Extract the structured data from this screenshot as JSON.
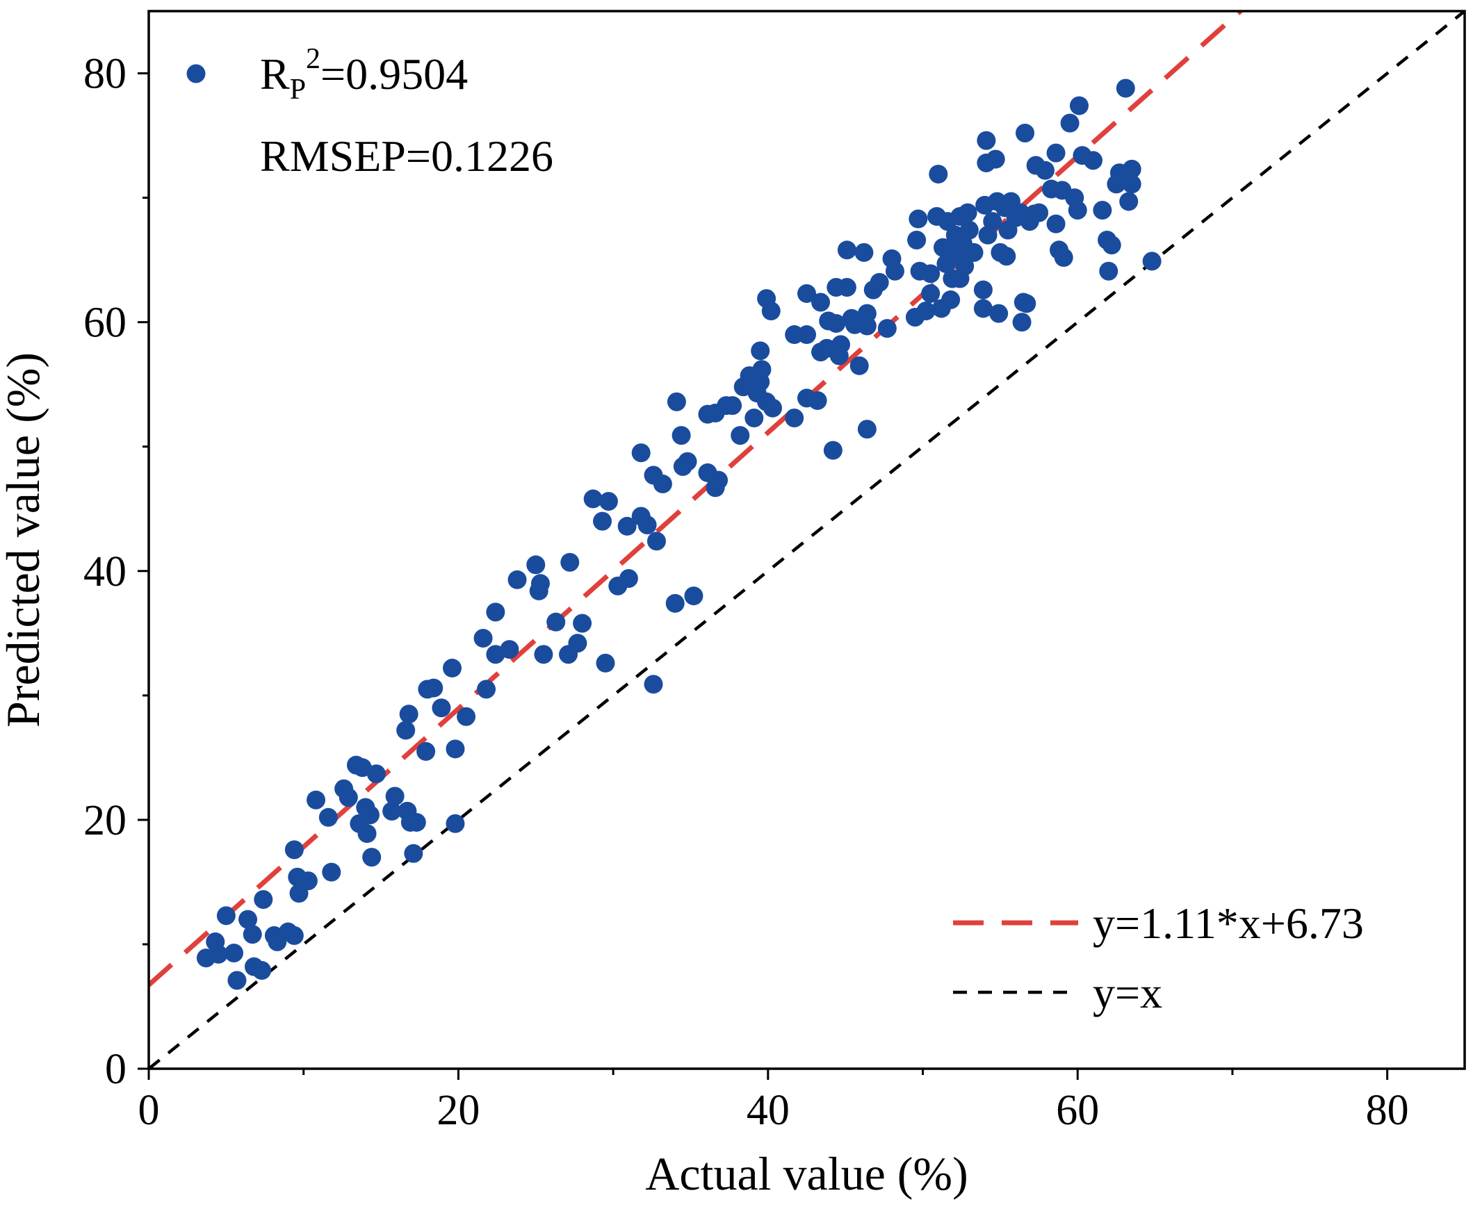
{
  "chart_data": {
    "type": "scatter",
    "xlabel": "Actual value (%)",
    "ylabel": "Predicted value (%)",
    "xlim": [
      0,
      85
    ],
    "ylim": [
      0,
      85
    ],
    "xticks": [
      0,
      20,
      40,
      60,
      80
    ],
    "yticks": [
      0,
      20,
      40,
      60,
      80
    ],
    "minor_xticks": [
      10,
      30,
      50,
      70
    ],
    "minor_yticks": [
      10,
      30,
      50,
      70
    ],
    "annotations": [
      {
        "base": "R",
        "sub": "P",
        "sup": "2",
        "text": "=0.9504"
      },
      {
        "text": "RMSEP=0.1226"
      }
    ],
    "series": [
      {
        "color": "#1a4c9e",
        "x": [
          3.7,
          4.3,
          5.0,
          4.5,
          5.5,
          5.7,
          6.4,
          6.7,
          6.8,
          7.3,
          7.4,
          8.1,
          8.3,
          9.0,
          9.4,
          9.4,
          9.6,
          9.7,
          10.3,
          10.8,
          11.6,
          11.8,
          12.6,
          12.9,
          13.4,
          13.6,
          13.8,
          14.0,
          14.1,
          14.3,
          14.4,
          14.7,
          15.7,
          15.9,
          16.7,
          16.9,
          17.1,
          17.3,
          16.6,
          16.8,
          17.9,
          18.0,
          18.4,
          18.9,
          19.6,
          19.8,
          19.8,
          20.5,
          21.8,
          21.6,
          22.4,
          22.4,
          23.3,
          23.8,
          25.0,
          25.2,
          25.3,
          25.5,
          26.3,
          27.2,
          27.1,
          27.7,
          28.0,
          28.7,
          29.3,
          29.7,
          29.5,
          30.3,
          31.0,
          30.9,
          31.8,
          31.8,
          32.2,
          32.6,
          32.8,
          32.6,
          33.2,
          34.1,
          34.0,
          34.4,
          34.5,
          34.8,
          35.2,
          36.1,
          36.6,
          36.8,
          36.1,
          36.6,
          37.3,
          37.7,
          38.2,
          38.4,
          38.8,
          39.1,
          39.3,
          39.5,
          39.6,
          39.5,
          39.9,
          40.2,
          39.9,
          40.3,
          41.7,
          41.7,
          42.5,
          42.5,
          42.5,
          43.2,
          43.4,
          43.4,
          43.8,
          43.9,
          44.4,
          44.4,
          44.6,
          44.2,
          44.7,
          45.1,
          45.1,
          45.4,
          45.6,
          45.9,
          46.2,
          46.4,
          46.4,
          46.4,
          46.8,
          47.2,
          47.7,
          48.0,
          48.2,
          49.5,
          49.6,
          49.7,
          49.8,
          50.2,
          50.5,
          50.5,
          51.0,
          50.9,
          51.2,
          51.3,
          51.5,
          51.6,
          51.8,
          51.8,
          51.9,
          52.1,
          52.3,
          52.4,
          52.4,
          52.6,
          52.7,
          53.0,
          52.9,
          53.3,
          53.9,
          53.9,
          54.1,
          54.1,
          54.0,
          54.2,
          54.5,
          54.7,
          54.8,
          54.9,
          55.0,
          55.3,
          55.4,
          55.5,
          55.7,
          56.0,
          56.3,
          56.5,
          56.4,
          56.6,
          56.7,
          56.9,
          57.2,
          57.5,
          57.3,
          57.9,
          58.3,
          58.6,
          58.6,
          58.8,
          59.1,
          59.0,
          59.5,
          60.0,
          60.1,
          60.3,
          59.8,
          61.0,
          61.6,
          61.9,
          62.0,
          62.2,
          62.5,
          62.7,
          63.1,
          63.3,
          63.5,
          63.5,
          64.8
        ],
        "values": [
          8.9,
          10.2,
          12.3,
          9.2,
          9.3,
          7.1,
          12.0,
          10.8,
          8.2,
          7.9,
          13.6,
          10.7,
          10.2,
          11.0,
          10.7,
          17.6,
          15.4,
          14.1,
          15.1,
          21.6,
          20.2,
          15.8,
          22.5,
          21.8,
          24.4,
          19.7,
          24.2,
          21.0,
          18.9,
          20.4,
          17.0,
          23.7,
          20.7,
          21.9,
          20.7,
          19.8,
          17.3,
          19.8,
          27.2,
          28.5,
          25.5,
          30.5,
          30.6,
          29.0,
          32.2,
          25.7,
          19.7,
          28.3,
          30.5,
          34.6,
          36.7,
          33.3,
          33.7,
          39.3,
          40.5,
          38.4,
          39.0,
          33.3,
          35.9,
          40.7,
          33.3,
          34.2,
          35.8,
          45.8,
          44.0,
          45.6,
          32.6,
          38.8,
          39.4,
          43.6,
          49.5,
          44.4,
          43.7,
          47.7,
          42.4,
          30.9,
          47.0,
          53.6,
          37.4,
          50.9,
          48.4,
          48.8,
          38.0,
          47.9,
          46.7,
          47.3,
          52.6,
          52.7,
          53.3,
          53.3,
          50.9,
          54.8,
          55.7,
          52.3,
          54.3,
          57.7,
          56.2,
          55.2,
          61.9,
          60.9,
          53.6,
          53.1,
          52.3,
          59.0,
          59.0,
          53.9,
          62.3,
          53.7,
          61.6,
          57.6,
          57.9,
          60.1,
          62.8,
          59.9,
          57.3,
          49.7,
          58.2,
          62.8,
          65.8,
          60.3,
          59.8,
          56.5,
          65.6,
          51.4,
          60.7,
          59.7,
          62.6,
          63.2,
          59.5,
          65.1,
          64.1,
          60.4,
          66.6,
          68.3,
          64.1,
          60.9,
          63.9,
          62.3,
          71.9,
          68.5,
          61.1,
          66.0,
          64.7,
          68.1,
          61.8,
          65.8,
          63.5,
          67.0,
          65.3,
          68.5,
          63.5,
          66.3,
          64.5,
          67.4,
          68.8,
          65.6,
          62.6,
          61.1,
          74.6,
          72.8,
          69.4,
          67.0,
          68.1,
          73.1,
          69.7,
          60.7,
          65.6,
          69.2,
          65.3,
          67.4,
          69.7,
          68.4,
          68.8,
          61.6,
          60.0,
          75.2,
          61.5,
          68.1,
          68.7,
          68.8,
          72.6,
          72.2,
          70.7,
          73.6,
          67.9,
          65.8,
          65.2,
          70.6,
          76.0,
          69.0,
          77.4,
          73.4,
          70.0,
          73.0,
          69.0,
          66.6,
          64.1,
          66.2,
          71.1,
          72.0,
          78.8,
          69.7,
          72.3,
          71.1,
          64.9
        ]
      }
    ],
    "lines": [
      {
        "name": "y=1.11*x+6.73",
        "slope": 1.11,
        "intercept": 6.73,
        "color": "#e0403c",
        "dash": "long"
      },
      {
        "name": "y=x",
        "slope": 1,
        "intercept": 0,
        "color": "#000000",
        "dash": "short"
      }
    ],
    "legend": "lower right"
  }
}
